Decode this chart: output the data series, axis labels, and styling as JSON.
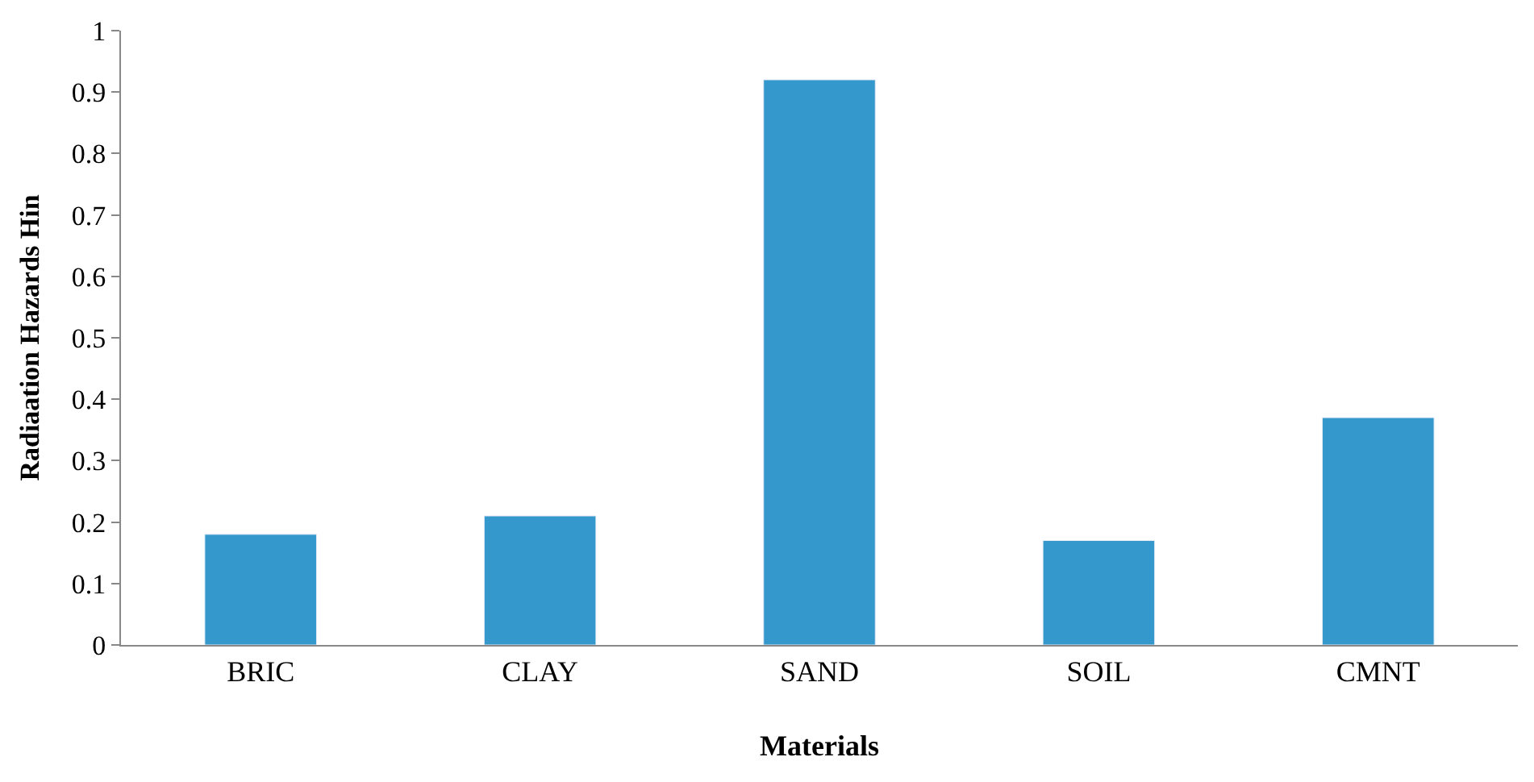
{
  "chart_data": {
    "type": "bar",
    "xlabel": "Materials",
    "ylabel": "Radiaation Hazards Hin",
    "categories": [
      "BRIC",
      "CLAY",
      "SAND",
      "SOIL",
      "CMNT"
    ],
    "values": [
      0.18,
      0.21,
      0.92,
      0.17,
      0.37
    ],
    "color": "#3498cc",
    "ylim": [
      0,
      1
    ],
    "yticks": [
      0,
      0.1,
      0.2,
      0.3,
      0.4,
      0.5,
      0.6,
      0.7,
      0.8,
      0.9,
      1
    ]
  }
}
